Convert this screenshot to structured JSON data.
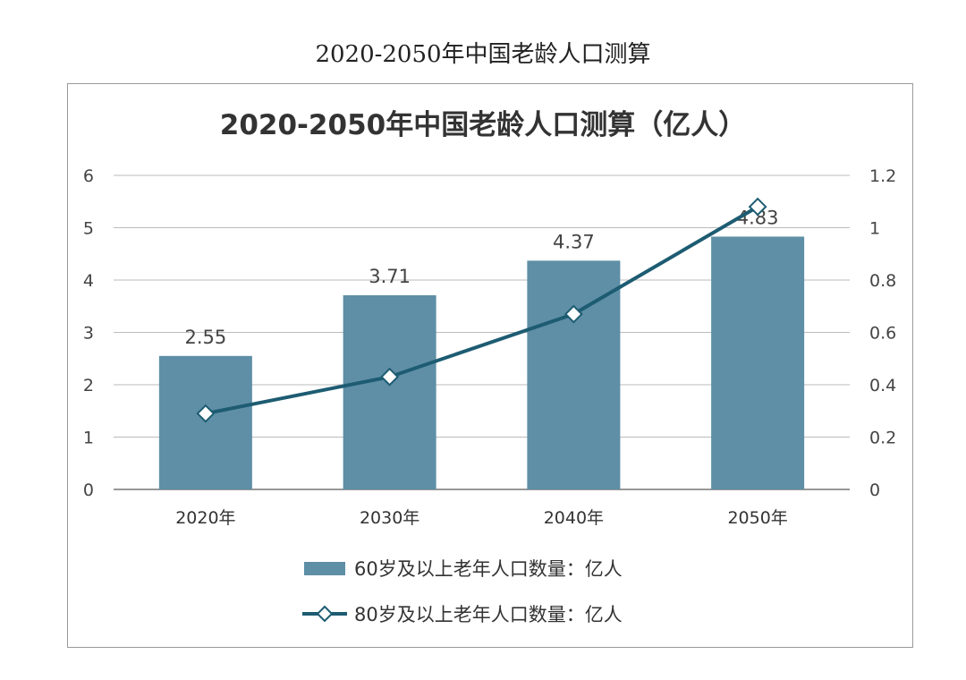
{
  "page_title": "2020-2050年中国老龄人口测算",
  "chart_data": {
    "type": "bar+line",
    "title": "2020-2050年中国老龄人口测算（亿人）",
    "categories": [
      "2020年",
      "2030年",
      "2040年",
      "2050年"
    ],
    "series": [
      {
        "name": "60岁及以上老年人口数量：亿人",
        "type": "bar",
        "axis": "left",
        "values": [
          2.55,
          3.71,
          4.37,
          4.83
        ],
        "color": "#5e8fa6",
        "data_labels": [
          "2.55",
          "3.71",
          "4.37",
          "4.83"
        ]
      },
      {
        "name": "80岁及以上老年人口数量：亿人",
        "type": "line",
        "axis": "right",
        "values": [
          0.29,
          0.43,
          0.67,
          1.08
        ],
        "color": "#1d5c72",
        "marker": "diamond"
      }
    ],
    "y_left": {
      "range": [
        0,
        6
      ],
      "ticks": [
        "0",
        "1",
        "2",
        "3",
        "4",
        "5",
        "6"
      ]
    },
    "y_right": {
      "range": [
        0,
        1.2
      ],
      "ticks": [
        "0",
        "0.2",
        "0.4",
        "0.6",
        "0.8",
        "1",
        "1.2"
      ]
    },
    "grid": true,
    "legend_position": "bottom"
  }
}
